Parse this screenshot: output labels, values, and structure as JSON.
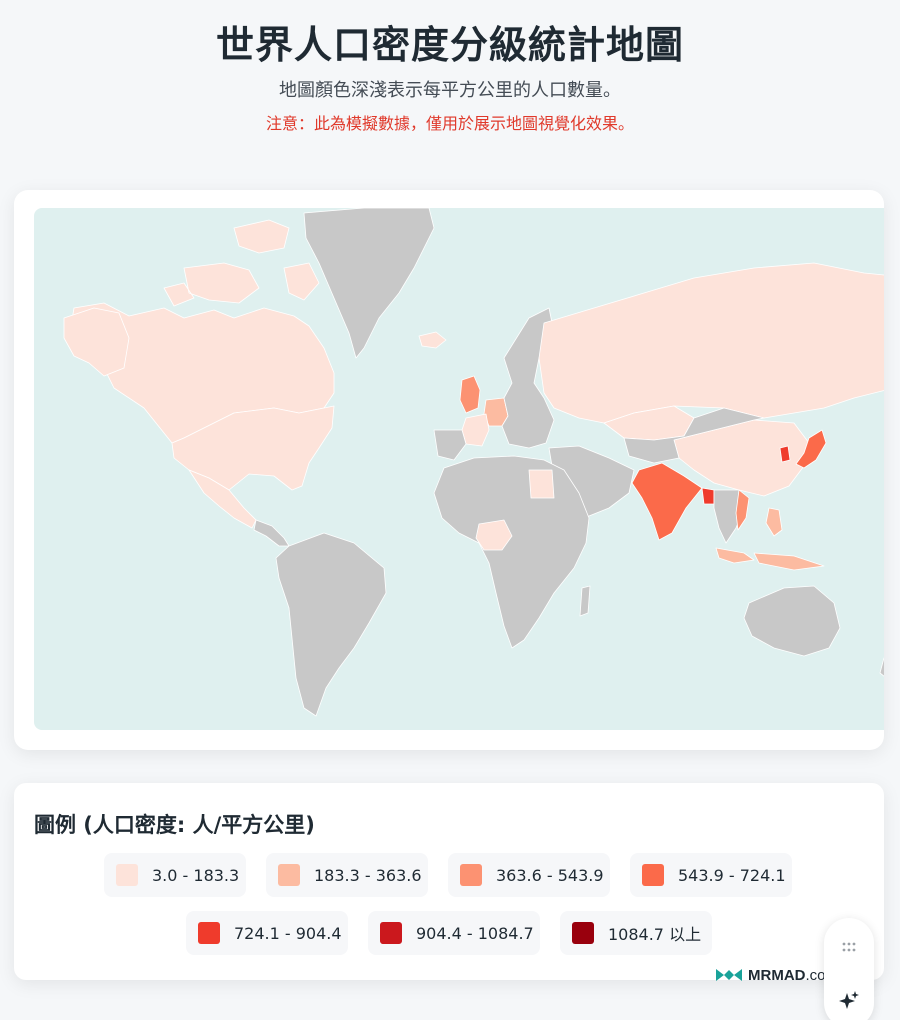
{
  "header": {
    "title": "世界人口密度分級統計地圖",
    "subtitle": "地圖顏色深淺表示每平方公里的人口數量。",
    "notice": "注意：此為模擬數據，僅用於展示地圖視覺化效果。"
  },
  "map": {
    "ocean_color": "#dff0ef",
    "no_data_color": "#c8c8c8",
    "border_color": "#ffffff",
    "countries": [
      {
        "name": "Canada",
        "class": 0
      },
      {
        "name": "United States",
        "class": 0
      },
      {
        "name": "Mexico",
        "class": 0
      },
      {
        "name": "Greenland",
        "class": null
      },
      {
        "name": "Iceland",
        "class": 0
      },
      {
        "name": "United Kingdom",
        "class": 2
      },
      {
        "name": "Germany",
        "class": 1
      },
      {
        "name": "France",
        "class": 0
      },
      {
        "name": "Russia",
        "class": 0
      },
      {
        "name": "Kazakhstan",
        "class": 0
      },
      {
        "name": "China",
        "class": 0
      },
      {
        "name": "India",
        "class": 3
      },
      {
        "name": "Bangladesh",
        "class": 4
      },
      {
        "name": "Japan",
        "class": 3
      },
      {
        "name": "South Korea",
        "class": 4
      },
      {
        "name": "Vietnam",
        "class": 2
      },
      {
        "name": "Philippines",
        "class": 1
      },
      {
        "name": "Indonesia",
        "class": 1
      },
      {
        "name": "Nigeria",
        "class": 0
      },
      {
        "name": "Egypt",
        "class": 0
      },
      {
        "name": "Australia",
        "class": null
      },
      {
        "name": "Brazil",
        "class": null
      }
    ]
  },
  "legend": {
    "title": "圖例 (人口密度: 人/平方公里)",
    "items": [
      {
        "label": "3.0 - 183.3",
        "color": "#fde3da"
      },
      {
        "label": "183.3 - 363.6",
        "color": "#fcbba1"
      },
      {
        "label": "363.6 - 543.9",
        "color": "#fc9272"
      },
      {
        "label": "543.9 - 724.1",
        "color": "#fb6a4a"
      },
      {
        "label": "724.1 - 904.4",
        "color": "#ef3b2c"
      },
      {
        "label": "904.4 - 1084.7",
        "color": "#cb181d"
      },
      {
        "label": "1084.7 以上",
        "color": "#99000d"
      }
    ]
  },
  "watermark": {
    "brand": "MRMAD",
    "domain": ".com.tw"
  },
  "side_tool": {
    "icons": [
      "grip-icon",
      "sparkle-icon"
    ]
  }
}
